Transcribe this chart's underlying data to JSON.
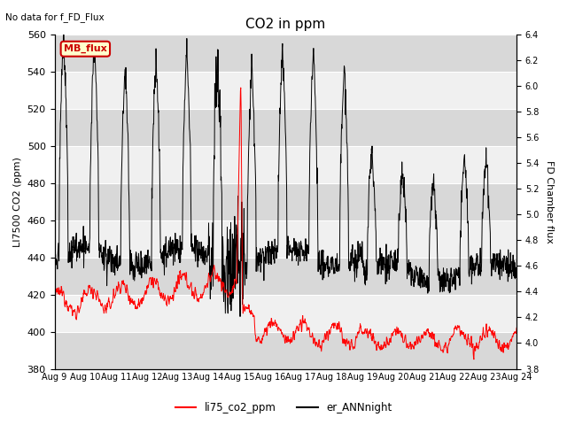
{
  "title": "CO2 in ppm",
  "top_left_text": "No data for f_FD_Flux",
  "ylabel_left": "LI7500 CO2 (ppm)",
  "ylabel_right": "FD Chamber flux",
  "ylim_left": [
    380,
    560
  ],
  "ylim_right": [
    3.8,
    6.4
  ],
  "yticks_left": [
    380,
    400,
    420,
    440,
    460,
    480,
    500,
    520,
    540,
    560
  ],
  "yticks_right": [
    3.8,
    4.0,
    4.2,
    4.4,
    4.6,
    4.8,
    5.0,
    5.2,
    5.4,
    5.6,
    5.8,
    6.0,
    6.2,
    6.4
  ],
  "xticklabels": [
    "Aug 9",
    "Aug 10",
    "Aug 11",
    "Aug 12",
    "Aug 13",
    "Aug 14",
    "Aug 15",
    "Aug 16",
    "Aug 17",
    "Aug 18",
    "Aug 19",
    "Aug 20",
    "Aug 21",
    "Aug 22",
    "Aug 23",
    "Aug 24"
  ],
  "legend_entries": [
    "li75_co2_ppm",
    "er_ANNnight"
  ],
  "mb_flux_box_color": "#ffffcc",
  "mb_flux_border_color": "#cc0000",
  "mb_flux_text": "MB_flux",
  "background_color": "#ffffff",
  "plot_bg_light": "#f0f0f0",
  "plot_bg_dark": "#d8d8d8",
  "grid_color": "#ffffff",
  "li75_color": "#ff0000",
  "er_ANN_color": "#000000",
  "figsize": [
    6.4,
    4.8
  ],
  "dpi": 100
}
